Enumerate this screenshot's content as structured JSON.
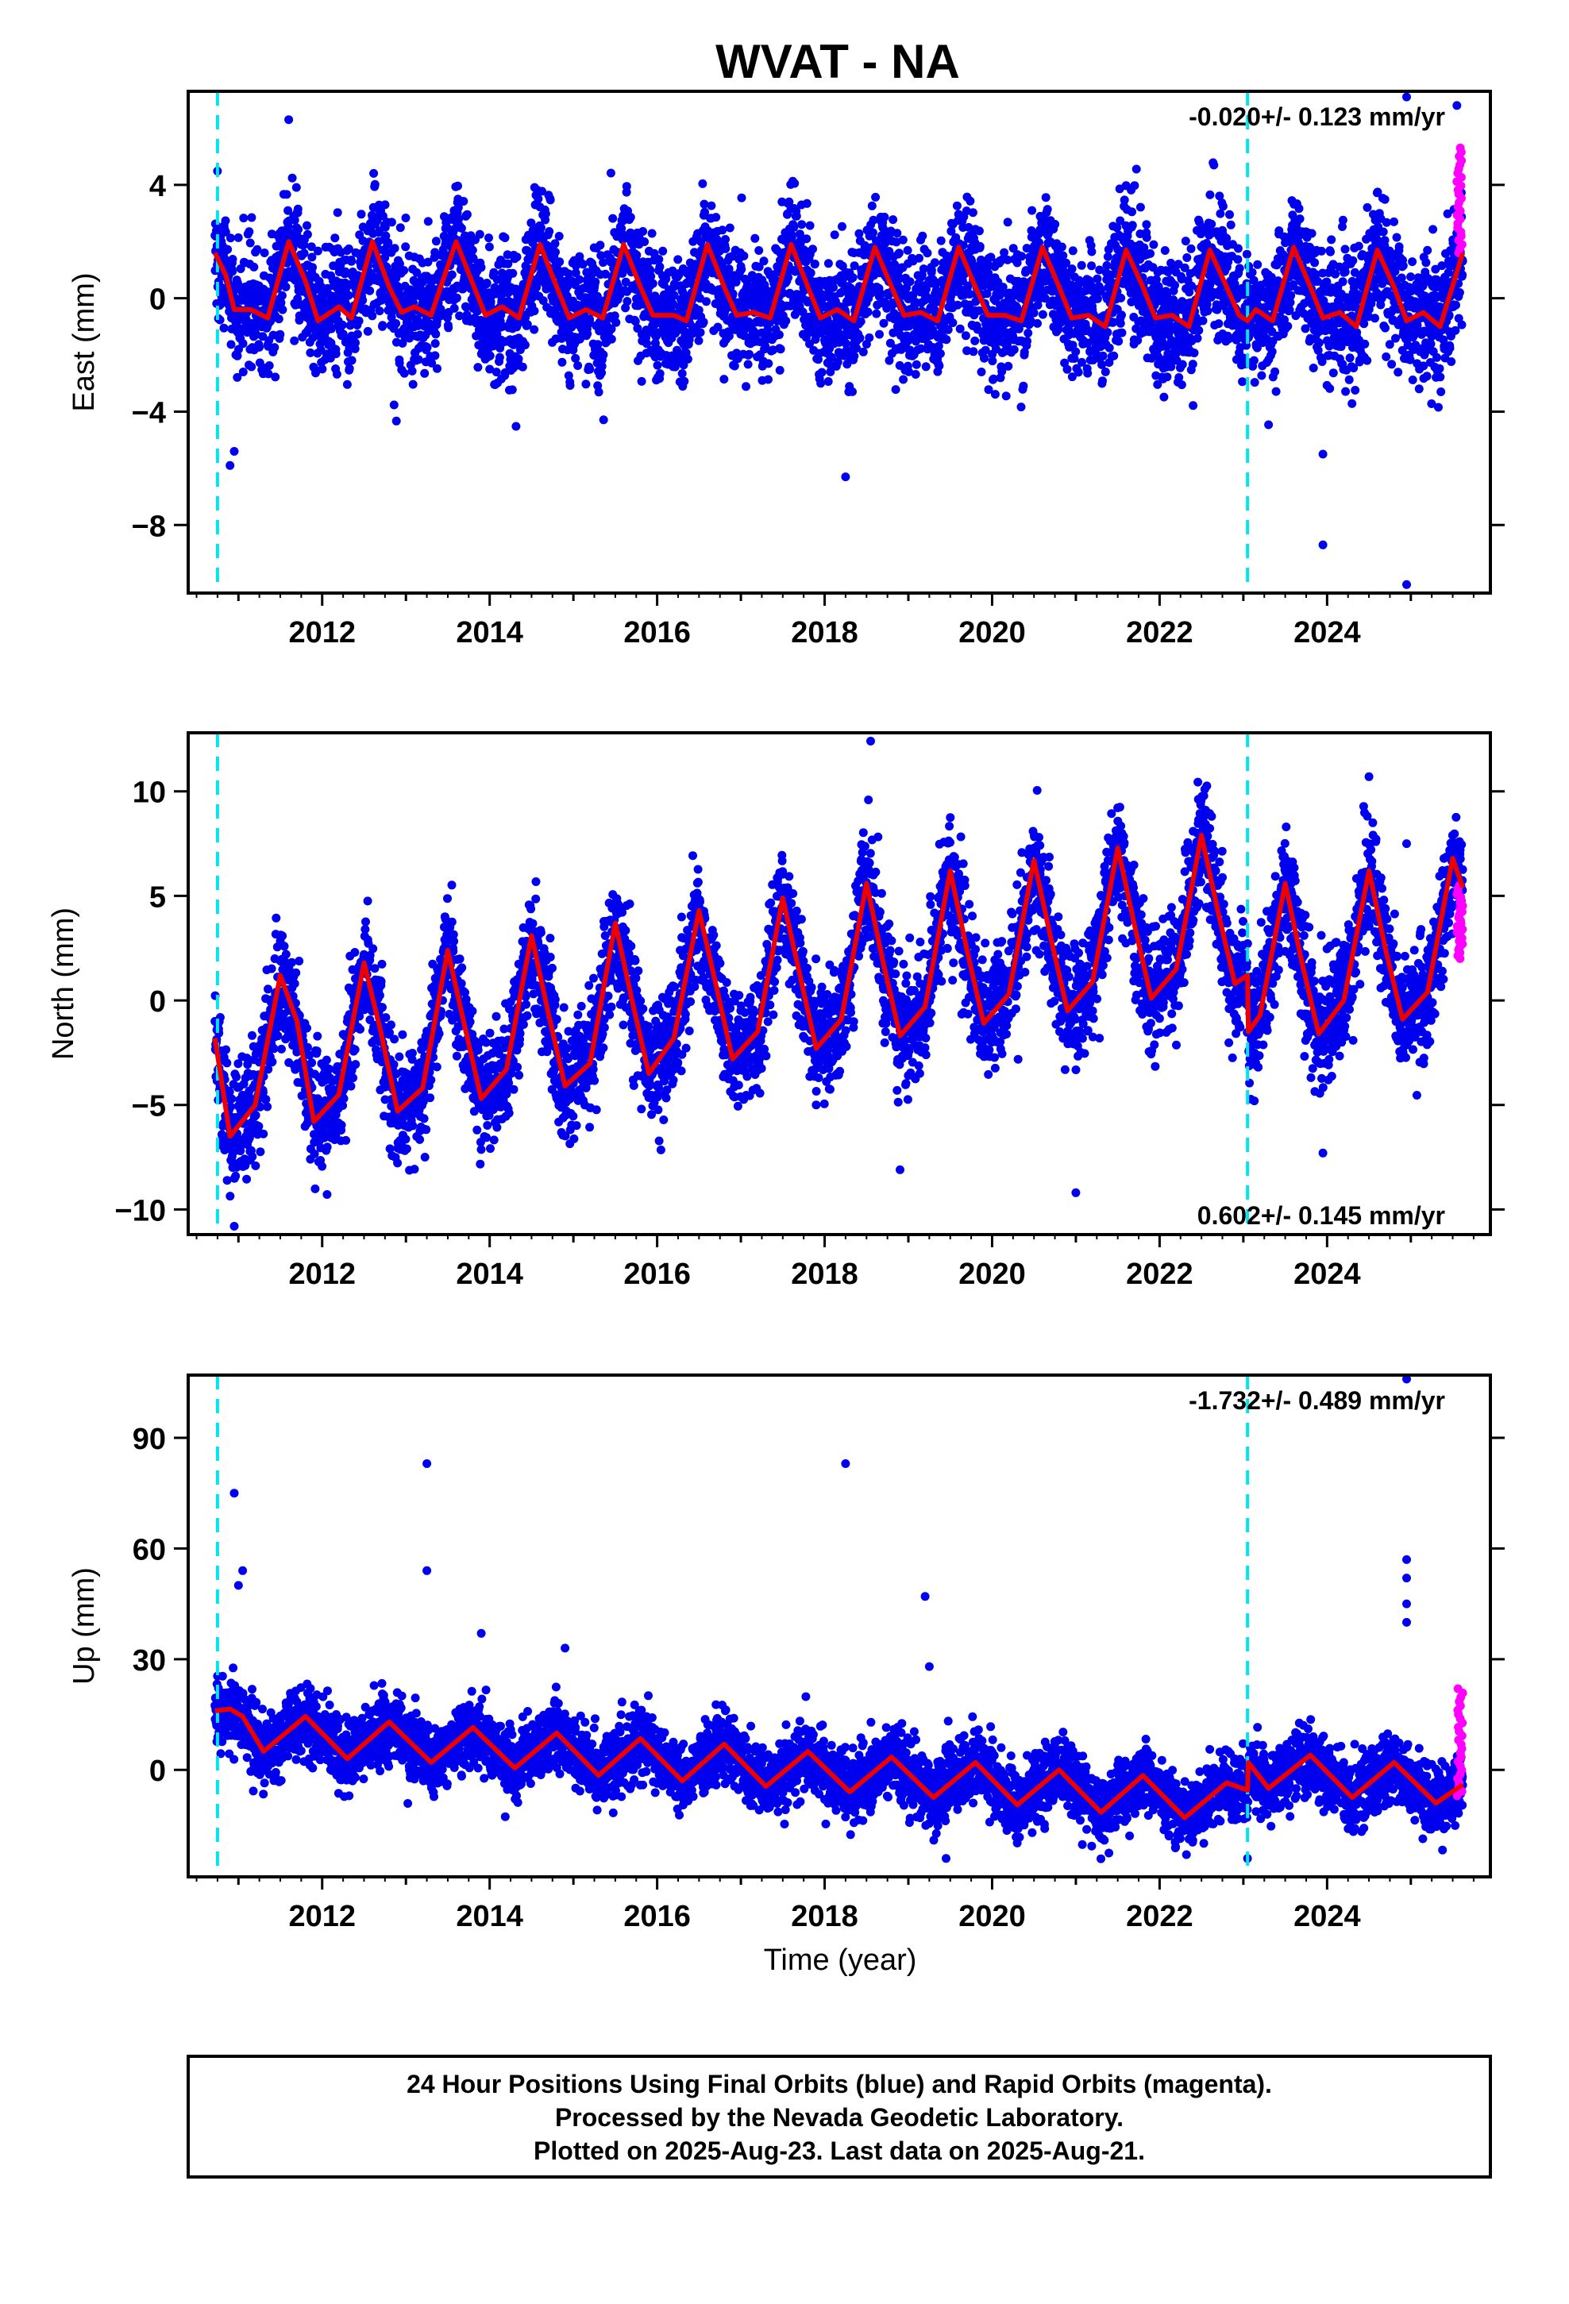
{
  "chart_data": {
    "type": "scatter",
    "title": "WVAT - NA",
    "xlabel": "Time (year)",
    "xlim": [
      2010.4,
      2025.95
    ],
    "xticks": [
      2012,
      2014,
      2016,
      2018,
      2020,
      2022,
      2024
    ],
    "vlines": [
      2010.75,
      2023.05
    ],
    "colors": {
      "final": "#0000ee",
      "rapid": "#ff00ff",
      "model": "#ee0000",
      "offsets": "#00e5ee"
    },
    "panels": [
      {
        "id": "east",
        "ylabel": "East (mm)",
        "ylim": [
          -10.4,
          7.3
        ],
        "yticks": [
          4,
          0,
          -4,
          -8
        ],
        "rate": "-0.020+/- 0.123 mm/yr",
        "model": {
          "start": 2010.72,
          "end": 2025.62,
          "points": [
            [
              2010.72,
              1.6
            ],
            [
              2010.85,
              0.8
            ],
            [
              2010.95,
              -0.4
            ],
            [
              2011.15,
              -0.4
            ],
            [
              2011.35,
              -0.7
            ],
            [
              2011.6,
              2.0
            ],
            [
              2011.8,
              0.6
            ],
            [
              2011.95,
              -0.8
            ],
            [
              2012.2,
              -0.3
            ],
            [
              2012.35,
              -0.7
            ],
            [
              2012.6,
              2.0
            ],
            [
              2012.8,
              0.4
            ],
            [
              2012.95,
              -0.5
            ],
            [
              2013.1,
              -0.3
            ],
            [
              2013.3,
              -0.6
            ],
            [
              2013.6,
              2.0
            ],
            [
              2013.8,
              0.5
            ],
            [
              2013.95,
              -0.6
            ],
            [
              2014.15,
              -0.3
            ],
            [
              2014.35,
              -0.7
            ],
            [
              2014.6,
              1.9
            ],
            [
              2014.8,
              0.4
            ],
            [
              2014.95,
              -0.7
            ],
            [
              2015.15,
              -0.4
            ],
            [
              2015.35,
              -0.7
            ],
            [
              2015.6,
              1.9
            ],
            [
              2015.8,
              0.4
            ],
            [
              2015.95,
              -0.6
            ],
            [
              2016.2,
              -0.6
            ],
            [
              2016.35,
              -0.8
            ],
            [
              2016.6,
              1.9
            ],
            [
              2016.8,
              0.4
            ],
            [
              2016.95,
              -0.6
            ],
            [
              2017.15,
              -0.5
            ],
            [
              2017.35,
              -0.7
            ],
            [
              2017.6,
              1.9
            ],
            [
              2017.8,
              0.4
            ],
            [
              2017.95,
              -0.7
            ],
            [
              2018.15,
              -0.4
            ],
            [
              2018.35,
              -0.8
            ],
            [
              2018.6,
              1.8
            ],
            [
              2018.8,
              0.4
            ],
            [
              2018.95,
              -0.6
            ],
            [
              2019.15,
              -0.5
            ],
            [
              2019.35,
              -0.8
            ],
            [
              2019.6,
              1.8
            ],
            [
              2019.8,
              0.4
            ],
            [
              2019.95,
              -0.6
            ],
            [
              2020.15,
              -0.6
            ],
            [
              2020.35,
              -0.8
            ],
            [
              2020.6,
              1.8
            ],
            [
              2020.8,
              0.4
            ],
            [
              2020.95,
              -0.7
            ],
            [
              2021.15,
              -0.6
            ],
            [
              2021.35,
              -1.0
            ],
            [
              2021.6,
              1.7
            ],
            [
              2021.8,
              0.4
            ],
            [
              2021.95,
              -0.7
            ],
            [
              2022.15,
              -0.6
            ],
            [
              2022.35,
              -1.0
            ],
            [
              2022.6,
              1.7
            ],
            [
              2022.8,
              0.4
            ],
            [
              2022.95,
              -0.6
            ],
            [
              2023.05,
              -0.8
            ],
            [
              2023.15,
              -0.4
            ],
            [
              2023.35,
              -0.8
            ],
            [
              2023.6,
              1.8
            ],
            [
              2023.8,
              0.4
            ],
            [
              2023.95,
              -0.7
            ],
            [
              2024.15,
              -0.5
            ],
            [
              2024.35,
              -1.0
            ],
            [
              2024.6,
              1.7
            ],
            [
              2024.8,
              0.4
            ],
            [
              2024.95,
              -0.8
            ],
            [
              2025.15,
              -0.5
            ],
            [
              2025.35,
              -1.0
            ],
            [
              2025.62,
              1.6
            ]
          ]
        },
        "scatter_sd": 1.1,
        "outliers": [
          [
            2010.9,
            -5.9
          ],
          [
            2010.95,
            -5.4
          ],
          [
            2011.6,
            6.3
          ],
          [
            2018.25,
            -6.3
          ],
          [
            2023.95,
            -5.5
          ],
          [
            2023.95,
            -8.7
          ],
          [
            2024.95,
            -10.1
          ],
          [
            2024.95,
            7.1
          ],
          [
            2025.55,
            6.8
          ]
        ],
        "rapid": [
          2025.55,
          2025.62,
          1.6,
          5.3
        ]
      },
      {
        "id": "north",
        "ylabel": "North (mm)",
        "ylim": [
          -11.2,
          12.8
        ],
        "yticks": [
          10,
          5,
          0,
          -5,
          -10
        ],
        "rate": "0.602+/- 0.145 mm/yr",
        "model": {
          "start": 2010.72,
          "end": 2025.62,
          "points": [
            [
              2010.72,
              -1.8
            ],
            [
              2010.9,
              -6.5
            ],
            [
              2011.2,
              -5.0
            ],
            [
              2011.5,
              1.2
            ],
            [
              2011.7,
              -1.0
            ],
            [
              2011.9,
              -5.8
            ],
            [
              2012.2,
              -4.5
            ],
            [
              2012.5,
              1.8
            ],
            [
              2012.7,
              -1.5
            ],
            [
              2012.9,
              -5.3
            ],
            [
              2013.2,
              -4.2
            ],
            [
              2013.5,
              2.4
            ],
            [
              2013.7,
              -1.2
            ],
            [
              2013.9,
              -4.7
            ],
            [
              2014.2,
              -3.3
            ],
            [
              2014.5,
              3.1
            ],
            [
              2014.7,
              -0.6
            ],
            [
              2014.9,
              -4.1
            ],
            [
              2015.2,
              -3.0
            ],
            [
              2015.5,
              3.7
            ],
            [
              2015.7,
              0.0
            ],
            [
              2015.9,
              -3.5
            ],
            [
              2016.2,
              -1.8
            ],
            [
              2016.5,
              4.3
            ],
            [
              2016.7,
              0.8
            ],
            [
              2016.9,
              -2.8
            ],
            [
              2017.2,
              -1.5
            ],
            [
              2017.5,
              4.9
            ],
            [
              2017.7,
              1.3
            ],
            [
              2017.9,
              -2.3
            ],
            [
              2018.2,
              -0.9
            ],
            [
              2018.5,
              5.6
            ],
            [
              2018.7,
              1.8
            ],
            [
              2018.9,
              -1.7
            ],
            [
              2019.2,
              -0.3
            ],
            [
              2019.5,
              6.2
            ],
            [
              2019.7,
              2.4
            ],
            [
              2019.9,
              -1.1
            ],
            [
              2020.2,
              0.3
            ],
            [
              2020.5,
              6.7
            ],
            [
              2020.7,
              3.0
            ],
            [
              2020.9,
              -0.5
            ],
            [
              2021.2,
              0.9
            ],
            [
              2021.5,
              7.3
            ],
            [
              2021.7,
              3.6
            ],
            [
              2021.9,
              0.1
            ],
            [
              2022.2,
              1.5
            ],
            [
              2022.5,
              7.9
            ],
            [
              2022.7,
              4.2
            ],
            [
              2022.9,
              0.8
            ],
            [
              2023.05,
              1.2
            ],
            [
              2023.06,
              -1.5
            ],
            [
              2023.2,
              -0.7
            ],
            [
              2023.5,
              5.6
            ],
            [
              2023.7,
              1.8
            ],
            [
              2023.9,
              -1.6
            ],
            [
              2024.2,
              0.0
            ],
            [
              2024.5,
              6.2
            ],
            [
              2024.7,
              2.4
            ],
            [
              2024.9,
              -0.9
            ],
            [
              2025.2,
              0.4
            ],
            [
              2025.5,
              6.8
            ],
            [
              2025.62,
              5.4
            ]
          ]
        },
        "scatter_sd": 1.4,
        "outliers": [
          [
            2018.55,
            12.4
          ],
          [
            2021.0,
            -9.2
          ],
          [
            2018.9,
            -8.1
          ],
          [
            2010.95,
            -10.8
          ],
          [
            2024.5,
            10.7
          ],
          [
            2023.95,
            -7.3
          ],
          [
            2024.95,
            7.5
          ]
        ],
        "rapid": [
          2025.55,
          2025.62,
          2.0,
          5.5
        ]
      },
      {
        "id": "up",
        "ylabel": "Up (mm)",
        "ylim": [
          -29,
          107
        ],
        "yticks": [
          90,
          60,
          30,
          0
        ],
        "rate": "-1.732+/- 0.489 mm/yr",
        "model": {
          "start": 2010.72,
          "end": 2025.62,
          "points": [
            [
              2010.72,
              16.0
            ],
            [
              2010.9,
              16.5
            ],
            [
              2011.05,
              14.5
            ],
            [
              2011.3,
              5.0
            ],
            [
              2011.8,
              14.5
            ],
            [
              2012.3,
              3.0
            ],
            [
              2012.8,
              13.0
            ],
            [
              2013.3,
              2.0
            ],
            [
              2013.8,
              11.5
            ],
            [
              2014.3,
              0.5
            ],
            [
              2014.8,
              10.0
            ],
            [
              2015.3,
              -1.5
            ],
            [
              2015.8,
              8.5
            ],
            [
              2016.3,
              -3.0
            ],
            [
              2016.8,
              7.0
            ],
            [
              2017.3,
              -4.5
            ],
            [
              2017.8,
              5.0
            ],
            [
              2018.3,
              -6.0
            ],
            [
              2018.8,
              3.5
            ],
            [
              2019.3,
              -7.5
            ],
            [
              2019.8,
              2.0
            ],
            [
              2020.3,
              -9.5
            ],
            [
              2020.8,
              0.0
            ],
            [
              2021.3,
              -11.5
            ],
            [
              2021.8,
              -1.5
            ],
            [
              2022.3,
              -13.0
            ],
            [
              2022.8,
              -3.5
            ],
            [
              2023.05,
              -5.5
            ],
            [
              2023.06,
              2.0
            ],
            [
              2023.3,
              -5.0
            ],
            [
              2023.8,
              4.0
            ],
            [
              2024.3,
              -7.5
            ],
            [
              2024.8,
              2.0
            ],
            [
              2025.3,
              -9.0
            ],
            [
              2025.62,
              -4.0
            ]
          ]
        },
        "scatter_sd": 4.5,
        "outliers": [
          [
            2010.95,
            75
          ],
          [
            2011.0,
            50
          ],
          [
            2011.05,
            54
          ],
          [
            2013.25,
            83
          ],
          [
            2013.25,
            54
          ],
          [
            2013.9,
            37
          ],
          [
            2014.9,
            33
          ],
          [
            2018.25,
            83
          ],
          [
            2019.2,
            47
          ],
          [
            2019.25,
            28
          ],
          [
            2019.45,
            -24
          ],
          [
            2023.05,
            -24
          ],
          [
            2024.95,
            106
          ],
          [
            2024.95,
            57
          ],
          [
            2024.95,
            52
          ],
          [
            2024.95,
            45
          ],
          [
            2024.95,
            40
          ]
        ],
        "rapid": [
          2025.55,
          2025.62,
          -7.0,
          22.0
        ]
      }
    ],
    "footer": [
      "24 Hour Positions Using Final Orbits (blue) and Rapid Orbits (magenta).",
      "Processed by the Nevada Geodetic Laboratory.",
      "Plotted on 2025-Aug-23. Last data on 2025-Aug-21."
    ]
  }
}
